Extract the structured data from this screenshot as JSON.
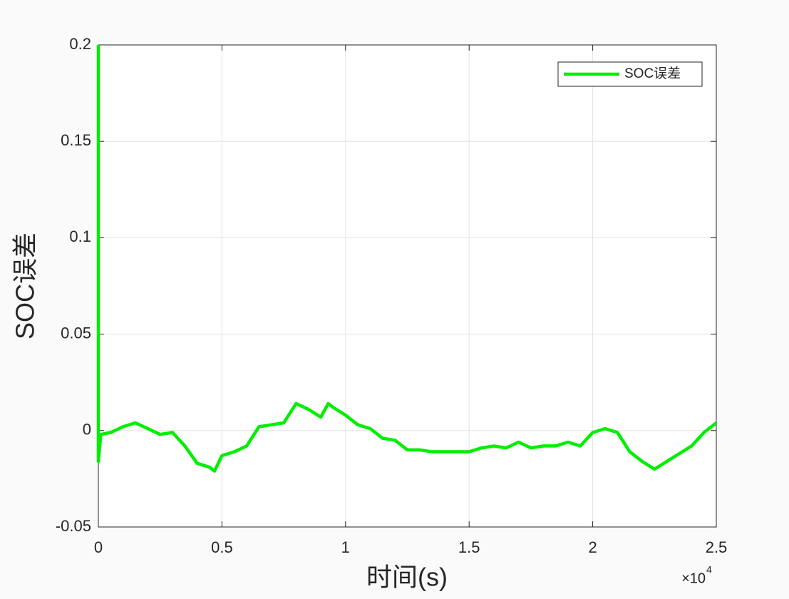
{
  "chart_data": {
    "type": "line",
    "xlabel": "时间(s)",
    "ylabel": "SOC误差",
    "x_multiplier": "×10",
    "x_multiplier_exponent": "4",
    "x": [
      0,
      0,
      0.01,
      0.05,
      0.1,
      0.15,
      0.2,
      0.25,
      0.3,
      0.35,
      0.4,
      0.45,
      0.47,
      0.5,
      0.55,
      0.6,
      0.65,
      0.7,
      0.75,
      0.8,
      0.85,
      0.9,
      0.93,
      0.95,
      1.0,
      1.05,
      1.1,
      1.15,
      1.2,
      1.25,
      1.3,
      1.35,
      1.4,
      1.45,
      1.5,
      1.55,
      1.6,
      1.65,
      1.7,
      1.75,
      1.8,
      1.85,
      1.9,
      1.95,
      2.0,
      2.05,
      2.1,
      2.15,
      2.2,
      2.25,
      2.3,
      2.35,
      2.4,
      2.45,
      2.5
    ],
    "series": [
      {
        "name": "SOC误差",
        "color": "#00ee00",
        "values": [
          0.2,
          -0.016,
          -0.002,
          -0.001,
          0.002,
          0.004,
          0.001,
          -0.002,
          -0.001,
          -0.008,
          -0.017,
          -0.019,
          -0.021,
          -0.013,
          -0.011,
          -0.008,
          0.002,
          0.003,
          0.004,
          0.014,
          0.011,
          0.007,
          0.014,
          0.012,
          0.008,
          0.003,
          0.001,
          -0.004,
          -0.005,
          -0.01,
          -0.01,
          -0.011,
          -0.011,
          -0.011,
          -0.011,
          -0.009,
          -0.008,
          -0.009,
          -0.006,
          -0.009,
          -0.008,
          -0.008,
          -0.006,
          -0.008,
          -0.001,
          0.001,
          -0.001,
          -0.011,
          -0.016,
          -0.02,
          -0.016,
          -0.012,
          -0.008,
          -0.001,
          0.004
        ]
      }
    ],
    "xlim": [
      0,
      2.5
    ],
    "xticks": [
      0,
      0.5,
      1,
      1.5,
      2,
      2.5
    ],
    "ylim": [
      -0.05,
      0.2
    ],
    "yticks": [
      -0.05,
      0,
      0.05,
      0.1,
      0.15,
      0.2
    ],
    "grid": true,
    "legend": "upper right"
  }
}
